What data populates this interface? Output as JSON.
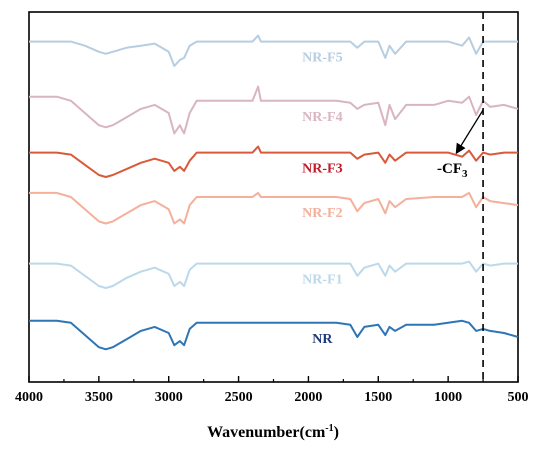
{
  "chart_data": {
    "type": "line",
    "title": "",
    "xlabel": "Wavenumber(cm⁻¹)",
    "xlabel_base": "Wavenumber(cm",
    "xlabel_sup": "-1",
    "xlabel_close": ")",
    "ylabel": "",
    "x_reversed": true,
    "xlim": [
      4000,
      500
    ],
    "x_ticks": [
      4000,
      3500,
      3000,
      2500,
      2000,
      1500,
      1000,
      500
    ],
    "y_ticks_visible": false,
    "grid": false,
    "vertical_marker": {
      "x": 750,
      "style": "dashed"
    },
    "annotation": {
      "text_base": "-CF",
      "text_sub": "3",
      "points_to_x": 750
    },
    "series": [
      {
        "name": "NR-F5",
        "color": "#b8cde0",
        "offset": 0.92,
        "scale": 0.55,
        "x": [
          4000,
          3800,
          3700,
          3600,
          3500,
          3450,
          3400,
          3300,
          3200,
          3100,
          3000,
          2960,
          2920,
          2890,
          2850,
          2800,
          2700,
          2500,
          2400,
          2360,
          2340,
          2300,
          2000,
          1800,
          1700,
          1650,
          1600,
          1500,
          1450,
          1420,
          1380,
          1300,
          1100,
          1000,
          900,
          850,
          800,
          750,
          700,
          600,
          500
        ],
        "y": [
          0,
          0,
          0,
          -0.02,
          -0.05,
          -0.06,
          -0.05,
          -0.03,
          -0.02,
          -0.01,
          -0.05,
          -0.12,
          -0.09,
          -0.08,
          -0.02,
          0,
          0,
          0,
          0,
          0.03,
          0,
          0,
          0,
          0,
          0,
          -0.03,
          0,
          0,
          -0.08,
          -0.02,
          -0.06,
          0,
          0,
          0,
          -0.02,
          0.02,
          -0.06,
          0,
          0,
          0,
          0
        ]
      },
      {
        "name": "NR-F4",
        "color": "#d9b4c2",
        "offset": 0.76,
        "scale": 0.55,
        "x": [
          4000,
          3800,
          3700,
          3600,
          3500,
          3450,
          3400,
          3300,
          3200,
          3100,
          3000,
          2960,
          2920,
          2890,
          2850,
          2800,
          2700,
          2500,
          2400,
          2360,
          2340,
          2300,
          2000,
          1800,
          1700,
          1650,
          1600,
          1500,
          1450,
          1420,
          1380,
          1300,
          1100,
          1000,
          900,
          850,
          800,
          750,
          700,
          600,
          500
        ],
        "y": [
          0.02,
          0.02,
          0,
          -0.06,
          -0.12,
          -0.13,
          -0.12,
          -0.08,
          -0.04,
          -0.02,
          -0.06,
          -0.16,
          -0.12,
          -0.16,
          -0.06,
          0,
          0,
          0,
          0,
          0.07,
          0,
          0,
          0,
          0,
          -0.01,
          -0.04,
          -0.02,
          -0.01,
          -0.12,
          -0.02,
          -0.09,
          -0.02,
          -0.02,
          0,
          -0.01,
          0.02,
          -0.07,
          0,
          -0.03,
          -0.02,
          -0.04
        ]
      },
      {
        "name": "NR-F3",
        "color": "#d95a3a",
        "label_color": "#c01c28",
        "offset": 0.62,
        "scale": 0.55,
        "x": [
          4000,
          3800,
          3700,
          3600,
          3500,
          3450,
          3400,
          3300,
          3200,
          3100,
          3000,
          2960,
          2920,
          2890,
          2850,
          2800,
          2700,
          2500,
          2400,
          2360,
          2340,
          2300,
          2000,
          1800,
          1700,
          1650,
          1600,
          1500,
          1450,
          1420,
          1380,
          1300,
          1100,
          1000,
          900,
          850,
          800,
          750,
          700,
          600,
          500
        ],
        "y": [
          0,
          0,
          -0.01,
          -0.06,
          -0.11,
          -0.12,
          -0.11,
          -0.08,
          -0.05,
          -0.03,
          -0.05,
          -0.09,
          -0.07,
          -0.09,
          -0.04,
          0,
          0,
          0,
          0,
          0.03,
          0,
          0,
          0,
          0,
          0,
          -0.03,
          -0.01,
          0,
          -0.05,
          -0.01,
          -0.04,
          0,
          0,
          0,
          -0.02,
          0.01,
          -0.04,
          0,
          -0.01,
          0,
          0
        ]
      },
      {
        "name": "NR-F2",
        "color": "#f4b09a",
        "offset": 0.5,
        "scale": 0.55,
        "x": [
          4000,
          3800,
          3700,
          3600,
          3500,
          3450,
          3400,
          3300,
          3200,
          3100,
          3000,
          2960,
          2920,
          2890,
          2850,
          2800,
          2700,
          2500,
          2400,
          2360,
          2340,
          2300,
          2000,
          1800,
          1700,
          1650,
          1600,
          1500,
          1450,
          1420,
          1380,
          1300,
          1100,
          1000,
          900,
          850,
          800,
          750,
          700,
          600,
          500
        ],
        "y": [
          0.02,
          0.02,
          0,
          -0.06,
          -0.12,
          -0.13,
          -0.12,
          -0.08,
          -0.04,
          -0.02,
          -0.06,
          -0.13,
          -0.11,
          -0.13,
          -0.04,
          0,
          0,
          0,
          0,
          0.02,
          0,
          0,
          0,
          0,
          -0.01,
          -0.07,
          -0.03,
          -0.01,
          -0.08,
          -0.02,
          -0.05,
          -0.01,
          0,
          0,
          0,
          0.02,
          -0.05,
          0,
          -0.02,
          -0.03,
          -0.04
        ]
      },
      {
        "name": "NR-F1",
        "color": "#bcd9ea",
        "offset": 0.32,
        "scale": 0.55,
        "x": [
          4000,
          3800,
          3700,
          3600,
          3500,
          3450,
          3400,
          3300,
          3200,
          3100,
          3000,
          2960,
          2920,
          2890,
          2850,
          2800,
          2700,
          2500,
          2400,
          2360,
          2340,
          2300,
          2000,
          1800,
          1700,
          1650,
          1600,
          1500,
          1450,
          1420,
          1380,
          1300,
          1100,
          1000,
          900,
          850,
          800,
          750,
          700,
          600,
          500
        ],
        "y": [
          0,
          0,
          -0.01,
          -0.06,
          -0.11,
          -0.12,
          -0.11,
          -0.07,
          -0.04,
          -0.02,
          -0.05,
          -0.11,
          -0.09,
          -0.11,
          -0.03,
          0,
          0,
          0,
          0,
          0,
          0,
          0,
          0,
          0,
          0,
          -0.06,
          -0.02,
          0,
          -0.06,
          -0.01,
          -0.04,
          0,
          0,
          0,
          0,
          0.01,
          -0.04,
          0,
          -0.01,
          0,
          0
        ]
      },
      {
        "name": "NR",
        "color": "#2e75b6",
        "label_color": "#1f3a7a",
        "offset": 0.16,
        "scale": 0.55,
        "x": [
          4000,
          3800,
          3700,
          3600,
          3500,
          3450,
          3400,
          3300,
          3200,
          3100,
          3000,
          2960,
          2920,
          2890,
          2850,
          2800,
          2700,
          2500,
          2400,
          2360,
          2340,
          2300,
          2000,
          1800,
          1700,
          1650,
          1600,
          1500,
          1450,
          1420,
          1380,
          1300,
          1100,
          1000,
          900,
          850,
          800,
          750,
          700,
          600,
          500
        ],
        "y": [
          0.01,
          0.01,
          0,
          -0.06,
          -0.12,
          -0.13,
          -0.12,
          -0.08,
          -0.04,
          -0.02,
          -0.05,
          -0.11,
          -0.09,
          -0.11,
          -0.03,
          0,
          0,
          0,
          0,
          0,
          0,
          0,
          0,
          0,
          -0.01,
          -0.07,
          -0.02,
          -0.01,
          -0.06,
          -0.02,
          -0.04,
          -0.01,
          -0.01,
          0,
          0.01,
          0,
          -0.04,
          -0.03,
          -0.04,
          -0.05,
          -0.07
        ]
      }
    ]
  }
}
